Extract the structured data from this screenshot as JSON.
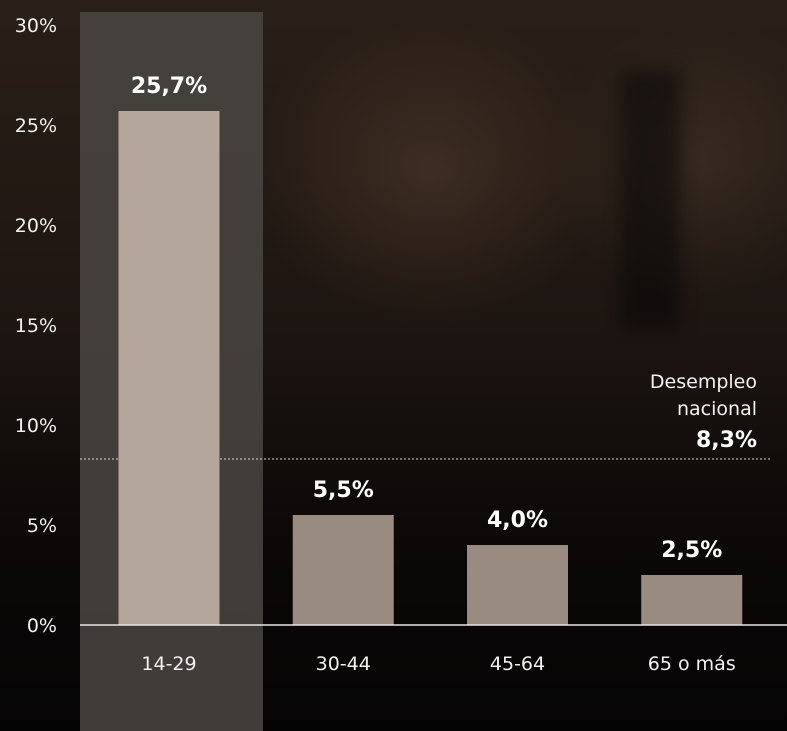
{
  "chart_data": {
    "type": "bar",
    "categories": [
      "14-29",
      "30-44",
      "45-64",
      "65 o más"
    ],
    "values": [
      25.7,
      5.5,
      4.0,
      2.5
    ],
    "value_labels": [
      "25,7%",
      "5,5%",
      "4,0%",
      "2,5%"
    ],
    "ylim": [
      0,
      30
    ],
    "yticks": [
      0,
      5,
      10,
      15,
      20,
      25,
      30
    ],
    "ytick_labels": [
      "0%",
      "5%",
      "10%",
      "15%",
      "20%",
      "25%",
      "30%"
    ],
    "highlighted_category": "14-29",
    "reference_line": {
      "value": 8.3,
      "label_line1": "Desempleo",
      "label_line2": "nacional",
      "value_label": "8,3%"
    },
    "bar_color": "#9a8b80",
    "highlight_bar_color": "#b5a69b",
    "highlight_band_color": "#4a4643",
    "text_color": "#f2f2f2",
    "reference_line_color": "#d8d3cf",
    "grid": false,
    "legend": "none"
  }
}
